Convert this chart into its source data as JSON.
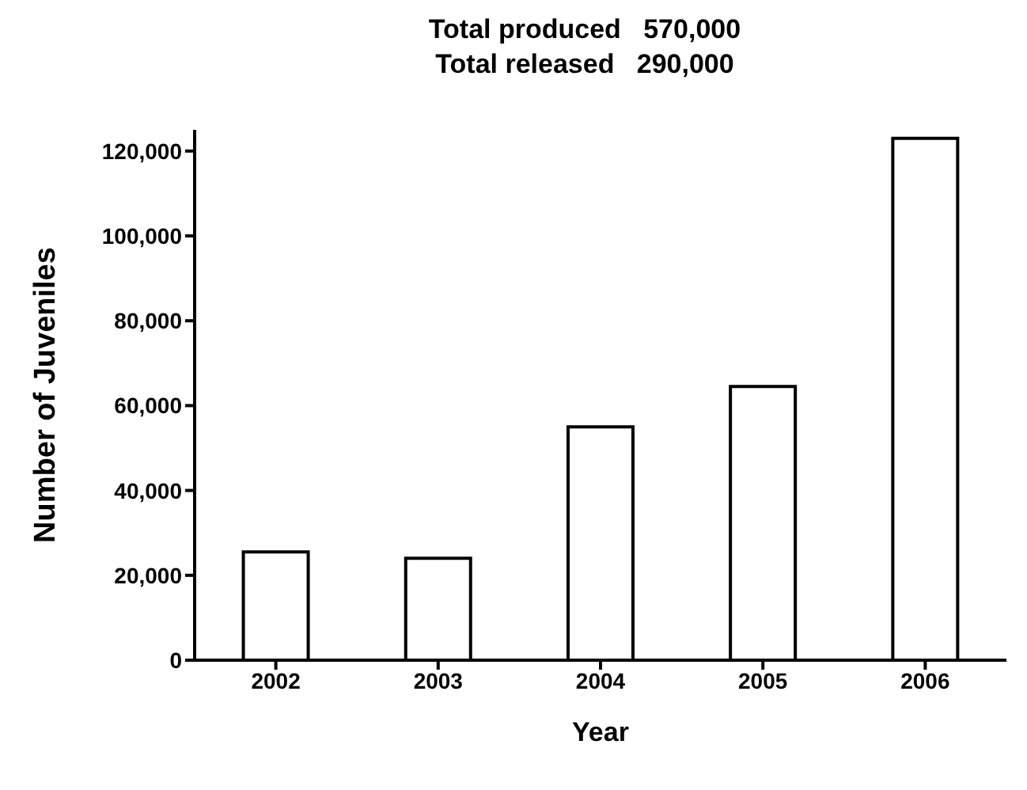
{
  "chart_data": {
    "type": "bar",
    "title": "Total produced   570,000",
    "subtitle": "Total released   290,000",
    "xlabel": "Year",
    "ylabel": "Number of Juveniles",
    "categories": [
      "2002",
      "2003",
      "2004",
      "2005",
      "2006"
    ],
    "values": [
      25500,
      24000,
      55000,
      64500,
      123000
    ],
    "color": "#ffffff",
    "ylim": [
      0,
      125000
    ],
    "yticks": [
      0,
      {
        "value": 20000,
        "label": "20,000"
      },
      {
        "value": 40000,
        "label": "40,000"
      },
      {
        "value": 60000,
        "label": "60,000"
      },
      {
        "value": 80000,
        "label": "80,000"
      },
      {
        "value": 100000,
        "label": "100,000"
      },
      {
        "value": 120000,
        "label": "120,000"
      }
    ],
    "grid": false,
    "legend": false
  }
}
